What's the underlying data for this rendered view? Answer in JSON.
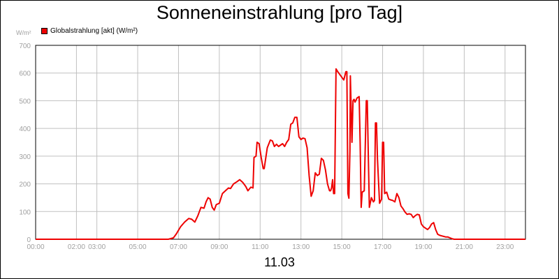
{
  "chart_data": {
    "type": "line",
    "title": "Sonneneinstrahlung [pro Tag]",
    "ylabel": "W/m²",
    "xlabel": "11.03",
    "ylim": [
      0,
      700
    ],
    "y_ticks": [
      0,
      100,
      200,
      300,
      400,
      500,
      600,
      700
    ],
    "xlim": [
      0,
      24
    ],
    "x_ticks": [
      {
        "t": 0,
        "label": "00:00"
      },
      {
        "t": 2,
        "label": "02:00"
      },
      {
        "t": 3,
        "label": "03:00"
      },
      {
        "t": 5,
        "label": "05:00"
      },
      {
        "t": 7,
        "label": "07:00"
      },
      {
        "t": 9,
        "label": "09:00"
      },
      {
        "t": 11,
        "label": "11:00"
      },
      {
        "t": 13,
        "label": "13:00"
      },
      {
        "t": 15,
        "label": "15:00"
      },
      {
        "t": 17,
        "label": "17:00"
      },
      {
        "t": 19,
        "label": "19:00"
      },
      {
        "t": 21,
        "label": "21:00"
      },
      {
        "t": 23,
        "label": "23:00"
      }
    ],
    "grid": true,
    "legend_position": "top-left",
    "colors": {
      "series": "#ee0000",
      "grid": "#c0c0c0",
      "tick_label": "#a0a0a0",
      "axis": "#000000"
    },
    "series": [
      {
        "name": "Globalstrahlung [akt] (W/m²)",
        "points": [
          [
            0,
            0
          ],
          [
            6.5,
            0
          ],
          [
            6.75,
            5
          ],
          [
            6.9,
            20
          ],
          [
            7.1,
            45
          ],
          [
            7.3,
            62
          ],
          [
            7.5,
            75
          ],
          [
            7.65,
            72
          ],
          [
            7.8,
            62
          ],
          [
            7.95,
            85
          ],
          [
            8.1,
            115
          ],
          [
            8.25,
            112
          ],
          [
            8.35,
            135
          ],
          [
            8.45,
            150
          ],
          [
            8.55,
            145
          ],
          [
            8.65,
            115
          ],
          [
            8.75,
            105
          ],
          [
            8.85,
            125
          ],
          [
            9.0,
            130
          ],
          [
            9.15,
            165
          ],
          [
            9.3,
            175
          ],
          [
            9.45,
            185
          ],
          [
            9.55,
            183
          ],
          [
            9.7,
            200
          ],
          [
            9.85,
            207
          ],
          [
            10.0,
            215
          ],
          [
            10.15,
            205
          ],
          [
            10.3,
            190
          ],
          [
            10.4,
            175
          ],
          [
            10.55,
            188
          ],
          [
            10.65,
            185
          ],
          [
            10.7,
            295
          ],
          [
            10.8,
            300
          ],
          [
            10.85,
            350
          ],
          [
            10.95,
            345
          ],
          [
            11.05,
            295
          ],
          [
            11.15,
            255
          ],
          [
            11.2,
            255
          ],
          [
            11.35,
            330
          ],
          [
            11.5,
            358
          ],
          [
            11.6,
            355
          ],
          [
            11.7,
            335
          ],
          [
            11.8,
            343
          ],
          [
            11.9,
            335
          ],
          [
            12.0,
            340
          ],
          [
            12.1,
            345
          ],
          [
            12.2,
            335
          ],
          [
            12.3,
            350
          ],
          [
            12.4,
            360
          ],
          [
            12.5,
            415
          ],
          [
            12.6,
            420
          ],
          [
            12.7,
            440
          ],
          [
            12.8,
            440
          ],
          [
            12.9,
            370
          ],
          [
            13.0,
            360
          ],
          [
            13.1,
            365
          ],
          [
            13.2,
            363
          ],
          [
            13.3,
            330
          ],
          [
            13.4,
            230
          ],
          [
            13.5,
            155
          ],
          [
            13.6,
            175
          ],
          [
            13.7,
            240
          ],
          [
            13.8,
            230
          ],
          [
            13.9,
            235
          ],
          [
            14.0,
            292
          ],
          [
            14.1,
            285
          ],
          [
            14.2,
            250
          ],
          [
            14.3,
            200
          ],
          [
            14.4,
            175
          ],
          [
            14.45,
            175
          ],
          [
            14.5,
            185
          ],
          [
            14.55,
            215
          ],
          [
            14.6,
            165
          ],
          [
            14.65,
            165
          ],
          [
            14.72,
            615
          ],
          [
            14.8,
            605
          ],
          [
            14.9,
            595
          ],
          [
            15.0,
            585
          ],
          [
            15.1,
            575
          ],
          [
            15.2,
            605
          ],
          [
            15.25,
            605
          ],
          [
            15.3,
            165
          ],
          [
            15.35,
            148
          ],
          [
            15.4,
            320
          ],
          [
            15.42,
            590
          ],
          [
            15.5,
            350
          ],
          [
            15.55,
            500
          ],
          [
            15.6,
            505
          ],
          [
            15.65,
            495
          ],
          [
            15.75,
            510
          ],
          [
            15.85,
            515
          ],
          [
            15.9,
            350
          ],
          [
            15.95,
            115
          ],
          [
            16.0,
            170
          ],
          [
            16.1,
            175
          ],
          [
            16.2,
            500
          ],
          [
            16.25,
            500
          ],
          [
            16.3,
            300
          ],
          [
            16.35,
            115
          ],
          [
            16.45,
            150
          ],
          [
            16.55,
            135
          ],
          [
            16.6,
            140
          ],
          [
            16.65,
            420
          ],
          [
            16.7,
            420
          ],
          [
            16.75,
            290
          ],
          [
            16.85,
            130
          ],
          [
            16.95,
            145
          ],
          [
            17.0,
            350
          ],
          [
            17.05,
            350
          ],
          [
            17.1,
            165
          ],
          [
            17.2,
            170
          ],
          [
            17.3,
            145
          ],
          [
            17.4,
            142
          ],
          [
            17.5,
            140
          ],
          [
            17.6,
            135
          ],
          [
            17.7,
            165
          ],
          [
            17.8,
            150
          ],
          [
            17.9,
            120
          ],
          [
            18.0,
            110
          ],
          [
            18.1,
            98
          ],
          [
            18.2,
            90
          ],
          [
            18.3,
            92
          ],
          [
            18.4,
            90
          ],
          [
            18.5,
            78
          ],
          [
            18.6,
            85
          ],
          [
            18.7,
            90
          ],
          [
            18.8,
            88
          ],
          [
            18.9,
            55
          ],
          [
            19.0,
            45
          ],
          [
            19.1,
            40
          ],
          [
            19.2,
            35
          ],
          [
            19.3,
            42
          ],
          [
            19.4,
            55
          ],
          [
            19.5,
            60
          ],
          [
            19.6,
            35
          ],
          [
            19.7,
            18
          ],
          [
            19.8,
            14
          ],
          [
            19.9,
            12
          ],
          [
            20.0,
            10
          ],
          [
            20.1,
            8
          ],
          [
            20.2,
            8
          ],
          [
            20.3,
            5
          ],
          [
            20.4,
            2
          ],
          [
            20.5,
            0
          ],
          [
            24,
            0
          ]
        ]
      }
    ]
  }
}
